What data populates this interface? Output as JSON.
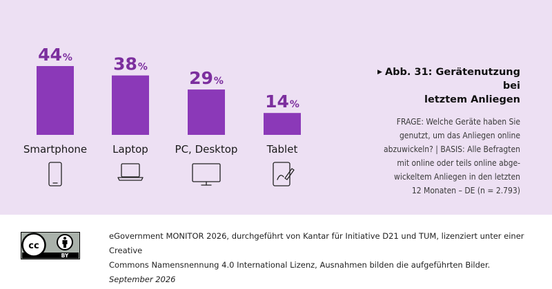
{
  "chart_data": {
    "type": "bar",
    "categories": [
      "Smartphone",
      "Laptop",
      "PC, Desktop",
      "Tablet"
    ],
    "values": [
      44,
      38,
      29,
      14
    ],
    "unit": "%",
    "ylim": [
      0,
      44
    ],
    "icons": [
      "smartphone-icon",
      "laptop-icon",
      "desktop-icon",
      "tablet-icon"
    ],
    "bar_color": "#8b39b8",
    "value_color": "#7c2f9e"
  },
  "figure": {
    "title_line1": "Abb. 31: Gerätenutzung bei",
    "title_line2": "letztem Anliegen",
    "question_lines": [
      "FRAGE: Welche Geräte haben Sie",
      "genutzt, um das Anliegen online",
      "abzuwickeln? | BASIS: Alle Befragten",
      "mit online oder teils online abge-",
      "wickeltem Anliegen in den letzten",
      "12 Monaten – DE (n = 2.793)"
    ]
  },
  "footer": {
    "credit_line1": "eGovernment MONITOR 2026, durchgeführt von Kantar für Initiative D21 und TUM, lizenziert unter einer Creative",
    "credit_line2": "Commons Namensnennung 4.0 International Lizenz, Ausnahmen bilden die aufgeführten Bilder.",
    "date": "September 2026",
    "license_badge": {
      "left": "cc",
      "right": "BY"
    }
  },
  "colors": {
    "panel_bg": "#ede0f3",
    "accent": "#8b39b8"
  }
}
